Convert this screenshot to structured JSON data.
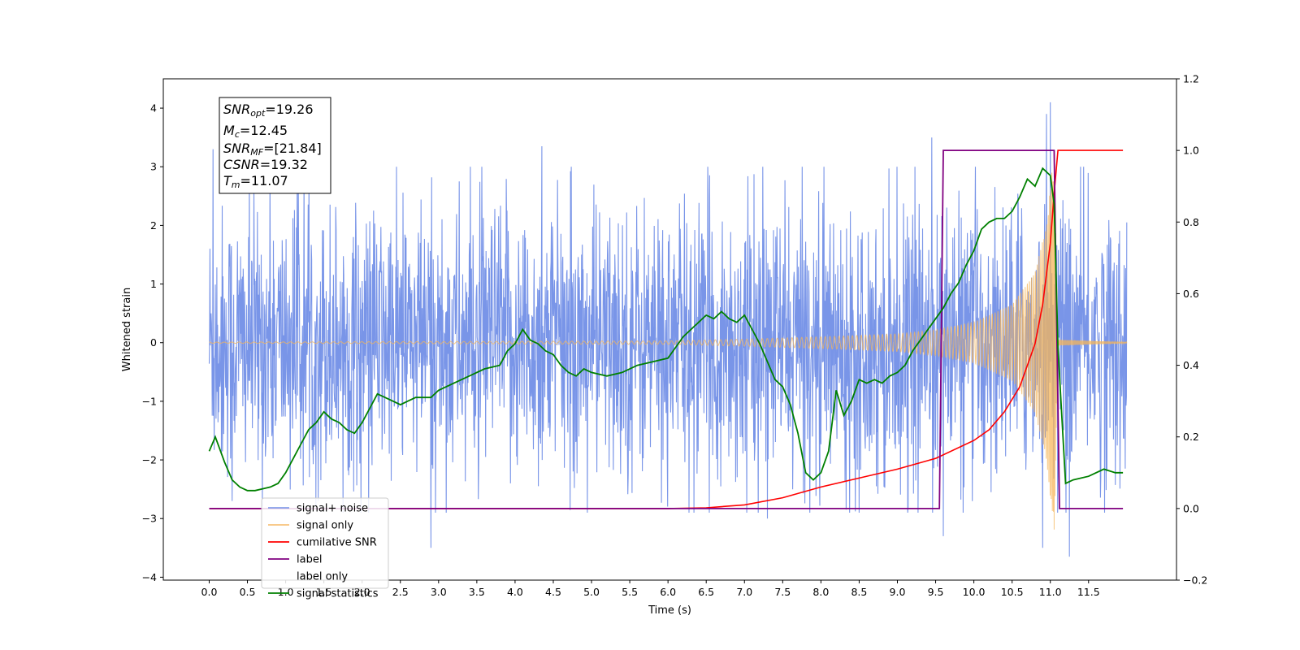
{
  "chart_data": {
    "type": "line",
    "xlabel": "Time (s)",
    "ylabel": "Whitened strain",
    "xlim": [
      -0.6,
      12.65
    ],
    "ylim": [
      -4.05,
      4.5
    ],
    "ylim_right": [
      -0.2,
      1.2
    ],
    "x_ticks": [
      "0.0",
      "0.5",
      "1.0",
      "1.5",
      "2.0",
      "2.5",
      "3.0",
      "3.5",
      "4.0",
      "4.5",
      "5.0",
      "5.5",
      "6.0",
      "6.5",
      "7.0",
      "7.5",
      "8.0",
      "8.5",
      "9.0",
      "9.5",
      "10.0",
      "10.5",
      "11.0",
      "11.5"
    ],
    "y_ticks_left": [
      "4",
      "3",
      "2",
      "1",
      "0",
      "−1",
      "−2",
      "−3",
      "−4"
    ],
    "y_ticks_right": [
      "1.2",
      "1.0",
      "0.8",
      "0.6",
      "0.4",
      "0.2",
      "0.0",
      "−0.2"
    ],
    "grid": false,
    "legend_position": "lower-left",
    "annotation": [
      {
        "base": "SNR",
        "sub": "opt",
        "value": "=19.26"
      },
      {
        "base": "M",
        "sub": "c",
        "value": "=12.45"
      },
      {
        "base": "SNR",
        "sub": "MF",
        "value": "=[21.84]"
      },
      {
        "base": "CSNR",
        "sub": "",
        "value": "=19.32"
      },
      {
        "base": "T",
        "sub": "m",
        "value": "=11.07"
      }
    ],
    "series": [
      {
        "name": "signal+ noise",
        "axis": "left",
        "color": "#6a89e6",
        "kind": "noise_band",
        "x_range": [
          0.0,
          12.0
        ],
        "typical_amplitude": 1.6,
        "peaks": [
          {
            "x": 0.05,
            "y": 3.3
          },
          {
            "x": 0.3,
            "y": -2.7
          },
          {
            "x": 1.15,
            "y": 2.6
          },
          {
            "x": 2.9,
            "y": -3.5
          },
          {
            "x": 4.35,
            "y": 3.35
          },
          {
            "x": 7.3,
            "y": -3.0
          },
          {
            "x": 9.45,
            "y": 3.5
          },
          {
            "x": 9.6,
            "y": -3.3
          },
          {
            "x": 10.95,
            "y": 3.9
          },
          {
            "x": 11.0,
            "y": 4.1
          },
          {
            "x": 10.9,
            "y": -3.5
          },
          {
            "x": 11.25,
            "y": -3.65
          }
        ]
      },
      {
        "name": "signal only",
        "axis": "left",
        "color": "#f5b55a",
        "kind": "chirp_envelope",
        "points": [
          [
            0.0,
            0.01
          ],
          [
            6.0,
            0.03
          ],
          [
            7.0,
            0.06
          ],
          [
            8.0,
            0.1
          ],
          [
            9.0,
            0.15
          ],
          [
            9.5,
            0.22
          ],
          [
            10.0,
            0.35
          ],
          [
            10.5,
            0.65
          ],
          [
            10.8,
            1.2
          ],
          [
            10.95,
            2.0
          ],
          [
            11.05,
            3.3
          ],
          [
            11.1,
            0.05
          ],
          [
            12.0,
            0.01
          ]
        ]
      },
      {
        "name": "cumilative SNR",
        "axis": "right",
        "color": "#ff0000",
        "points": [
          [
            0.0,
            0.0
          ],
          [
            6.0,
            0.0
          ],
          [
            6.5,
            0.002
          ],
          [
            7.0,
            0.01
          ],
          [
            7.5,
            0.03
          ],
          [
            8.0,
            0.06
          ],
          [
            8.5,
            0.085
          ],
          [
            9.0,
            0.11
          ],
          [
            9.5,
            0.14
          ],
          [
            10.0,
            0.19
          ],
          [
            10.2,
            0.22
          ],
          [
            10.4,
            0.27
          ],
          [
            10.6,
            0.34
          ],
          [
            10.8,
            0.46
          ],
          [
            10.9,
            0.57
          ],
          [
            11.0,
            0.74
          ],
          [
            11.05,
            0.88
          ],
          [
            11.1,
            1.0
          ],
          [
            11.95,
            1.0
          ]
        ]
      },
      {
        "name": "label",
        "axis": "right",
        "color": "#800080",
        "points": [
          [
            0.0,
            0.0
          ],
          [
            9.55,
            0.0
          ],
          [
            9.6,
            1.0
          ],
          [
            11.05,
            1.0
          ],
          [
            11.12,
            0.0
          ],
          [
            11.95,
            0.0
          ]
        ]
      },
      {
        "name": "label only",
        "axis": "right",
        "color": "#800080",
        "points": []
      },
      {
        "name": "signal statistics",
        "axis": "right",
        "color": "#008000",
        "points": [
          [
            0.0,
            0.16
          ],
          [
            0.08,
            0.2
          ],
          [
            0.2,
            0.13
          ],
          [
            0.3,
            0.08
          ],
          [
            0.4,
            0.06
          ],
          [
            0.5,
            0.05
          ],
          [
            0.6,
            0.05
          ],
          [
            0.7,
            0.055
          ],
          [
            0.8,
            0.06
          ],
          [
            0.9,
            0.07
          ],
          [
            1.0,
            0.1
          ],
          [
            1.1,
            0.14
          ],
          [
            1.2,
            0.18
          ],
          [
            1.3,
            0.22
          ],
          [
            1.4,
            0.24
          ],
          [
            1.5,
            0.27
          ],
          [
            1.6,
            0.25
          ],
          [
            1.7,
            0.24
          ],
          [
            1.8,
            0.22
          ],
          [
            1.9,
            0.21
          ],
          [
            2.0,
            0.24
          ],
          [
            2.1,
            0.28
          ],
          [
            2.2,
            0.32
          ],
          [
            2.3,
            0.31
          ],
          [
            2.4,
            0.3
          ],
          [
            2.5,
            0.29
          ],
          [
            2.6,
            0.3
          ],
          [
            2.7,
            0.31
          ],
          [
            2.8,
            0.31
          ],
          [
            2.9,
            0.31
          ],
          [
            3.0,
            0.33
          ],
          [
            3.2,
            0.35
          ],
          [
            3.4,
            0.37
          ],
          [
            3.6,
            0.39
          ],
          [
            3.8,
            0.4
          ],
          [
            3.9,
            0.44
          ],
          [
            4.0,
            0.46
          ],
          [
            4.1,
            0.5
          ],
          [
            4.2,
            0.47
          ],
          [
            4.3,
            0.46
          ],
          [
            4.4,
            0.44
          ],
          [
            4.5,
            0.43
          ],
          [
            4.6,
            0.4
          ],
          [
            4.7,
            0.38
          ],
          [
            4.8,
            0.37
          ],
          [
            4.9,
            0.39
          ],
          [
            5.0,
            0.38
          ],
          [
            5.2,
            0.37
          ],
          [
            5.4,
            0.38
          ],
          [
            5.6,
            0.4
          ],
          [
            5.8,
            0.41
          ],
          [
            6.0,
            0.42
          ],
          [
            6.1,
            0.45
          ],
          [
            6.2,
            0.48
          ],
          [
            6.3,
            0.5
          ],
          [
            6.4,
            0.52
          ],
          [
            6.5,
            0.54
          ],
          [
            6.6,
            0.53
          ],
          [
            6.7,
            0.55
          ],
          [
            6.8,
            0.53
          ],
          [
            6.9,
            0.52
          ],
          [
            7.0,
            0.54
          ],
          [
            7.1,
            0.5
          ],
          [
            7.2,
            0.46
          ],
          [
            7.3,
            0.41
          ],
          [
            7.4,
            0.36
          ],
          [
            7.5,
            0.34
          ],
          [
            7.6,
            0.29
          ],
          [
            7.7,
            0.21
          ],
          [
            7.8,
            0.1
          ],
          [
            7.9,
            0.08
          ],
          [
            8.0,
            0.1
          ],
          [
            8.1,
            0.16
          ],
          [
            8.2,
            0.33
          ],
          [
            8.3,
            0.26
          ],
          [
            8.4,
            0.3
          ],
          [
            8.5,
            0.36
          ],
          [
            8.6,
            0.35
          ],
          [
            8.7,
            0.36
          ],
          [
            8.8,
            0.35
          ],
          [
            8.9,
            0.37
          ],
          [
            9.0,
            0.38
          ],
          [
            9.1,
            0.4
          ],
          [
            9.2,
            0.44
          ],
          [
            9.3,
            0.47
          ],
          [
            9.4,
            0.5
          ],
          [
            9.5,
            0.53
          ],
          [
            9.6,
            0.56
          ],
          [
            9.7,
            0.6
          ],
          [
            9.8,
            0.63
          ],
          [
            9.9,
            0.68
          ],
          [
            10.0,
            0.72
          ],
          [
            10.1,
            0.78
          ],
          [
            10.2,
            0.8
          ],
          [
            10.3,
            0.81
          ],
          [
            10.4,
            0.81
          ],
          [
            10.5,
            0.83
          ],
          [
            10.6,
            0.87
          ],
          [
            10.7,
            0.92
          ],
          [
            10.8,
            0.9
          ],
          [
            10.9,
            0.95
          ],
          [
            11.0,
            0.93
          ],
          [
            11.05,
            0.85
          ],
          [
            11.1,
            0.45
          ],
          [
            11.2,
            0.07
          ],
          [
            11.3,
            0.08
          ],
          [
            11.5,
            0.09
          ],
          [
            11.7,
            0.11
          ],
          [
            11.85,
            0.1
          ],
          [
            11.95,
            0.1
          ]
        ]
      }
    ]
  }
}
